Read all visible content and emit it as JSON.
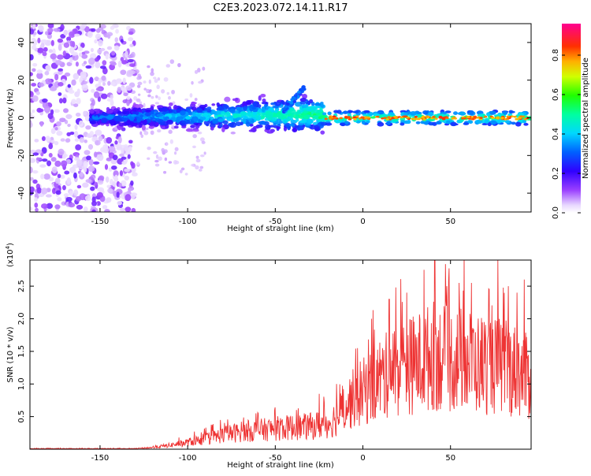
{
  "title": "C2E3.2023.072.14.11.R17",
  "chart_data": [
    {
      "type": "heatmap",
      "xlabel": "Height of straight line (km)",
      "ylabel": "Frequency (Hz)",
      "xlim": [
        -190,
        96
      ],
      "ylim": [
        -50,
        50
      ],
      "xticks": [
        -150,
        -100,
        -50,
        0,
        50
      ],
      "yticks": [
        -40,
        -20,
        0,
        20,
        40
      ],
      "colorbar": {
        "label": "Normalized spectral amplitude",
        "range": [
          0,
          0.96
        ],
        "ticks": [
          0.0,
          0.2,
          0.4,
          0.6,
          0.8
        ],
        "tick_labels": [
          "0.0",
          "0.2",
          "0.4",
          "0.6",
          "0.8"
        ],
        "colormap": "rainbow (white-violet-blue-cyan-green-yellow-orange-red-magenta)"
      },
      "regions": [
        {
          "x_range": [
            -190,
            -130
          ],
          "freq_range": [
            -50,
            50
          ],
          "amplitude": "low, scattered"
        },
        {
          "x_range": [
            -130,
            -25
          ],
          "freq_center": 0,
          "freq_spread": 10,
          "amplitude": "medium, patchy, rising toward -25"
        },
        {
          "x_range": [
            -25,
            96
          ],
          "freq_center": 0,
          "freq_spread": 3,
          "amplitude": "high, narrow band"
        }
      ]
    },
    {
      "type": "line",
      "xlabel": "Height of straight line (km)",
      "ylabel": "SNR (10 * v/v)",
      "y_multiplier_label": "(x10",
      "y_multiplier_exp": "4",
      "xlim": [
        -190,
        96
      ],
      "ylim": [
        0,
        2.9
      ],
      "xticks": [
        -150,
        -100,
        -50,
        0,
        50
      ],
      "yticks": [
        0.5,
        1.0,
        1.5,
        2.0,
        2.5
      ],
      "ytick_labels": [
        "0.5",
        "1.0",
        "1.5",
        "2.0",
        "2.5"
      ],
      "color": "#ee3333",
      "series": [
        {
          "x": [
            -190,
            -160,
            -130,
            -120,
            -110,
            -100,
            -90,
            -80,
            -70,
            -60,
            -50,
            -40,
            -30,
            -20,
            -15,
            -10,
            -5,
            0,
            5,
            10,
            15,
            20,
            25,
            30,
            35,
            40,
            45,
            50,
            55,
            60,
            65,
            70,
            75,
            80,
            85,
            90,
            96
          ],
          "y": [
            0.01,
            0.01,
            0.01,
            0.03,
            0.07,
            0.12,
            0.18,
            0.25,
            0.3,
            0.33,
            0.36,
            0.38,
            0.4,
            0.45,
            0.55,
            0.75,
            0.9,
            1.0,
            1.1,
            1.25,
            1.3,
            1.4,
            1.45,
            1.5,
            1.55,
            1.65,
            1.6,
            1.55,
            1.6,
            1.55,
            1.5,
            1.5,
            1.45,
            1.45,
            1.4,
            1.35,
            1.2
          ],
          "peaks": [
            [
              -78,
              0.35
            ],
            [
              -61,
              0.55
            ],
            [
              -38,
              0.6
            ],
            [
              -25,
              0.85
            ],
            [
              -15,
              1.0
            ],
            [
              -3,
              1.55
            ],
            [
              5,
              2.0
            ],
            [
              15,
              2.3
            ],
            [
              25,
              2.4
            ],
            [
              35,
              2.75
            ],
            [
              41,
              2.95
            ],
            [
              48,
              2.5
            ],
            [
              55,
              2.55
            ],
            [
              62,
              2.55
            ],
            [
              72,
              2.45
            ],
            [
              77,
              2.9
            ],
            [
              83,
              2.5
            ],
            [
              88,
              2.4
            ],
            [
              92,
              2.6
            ]
          ]
        }
      ]
    }
  ]
}
